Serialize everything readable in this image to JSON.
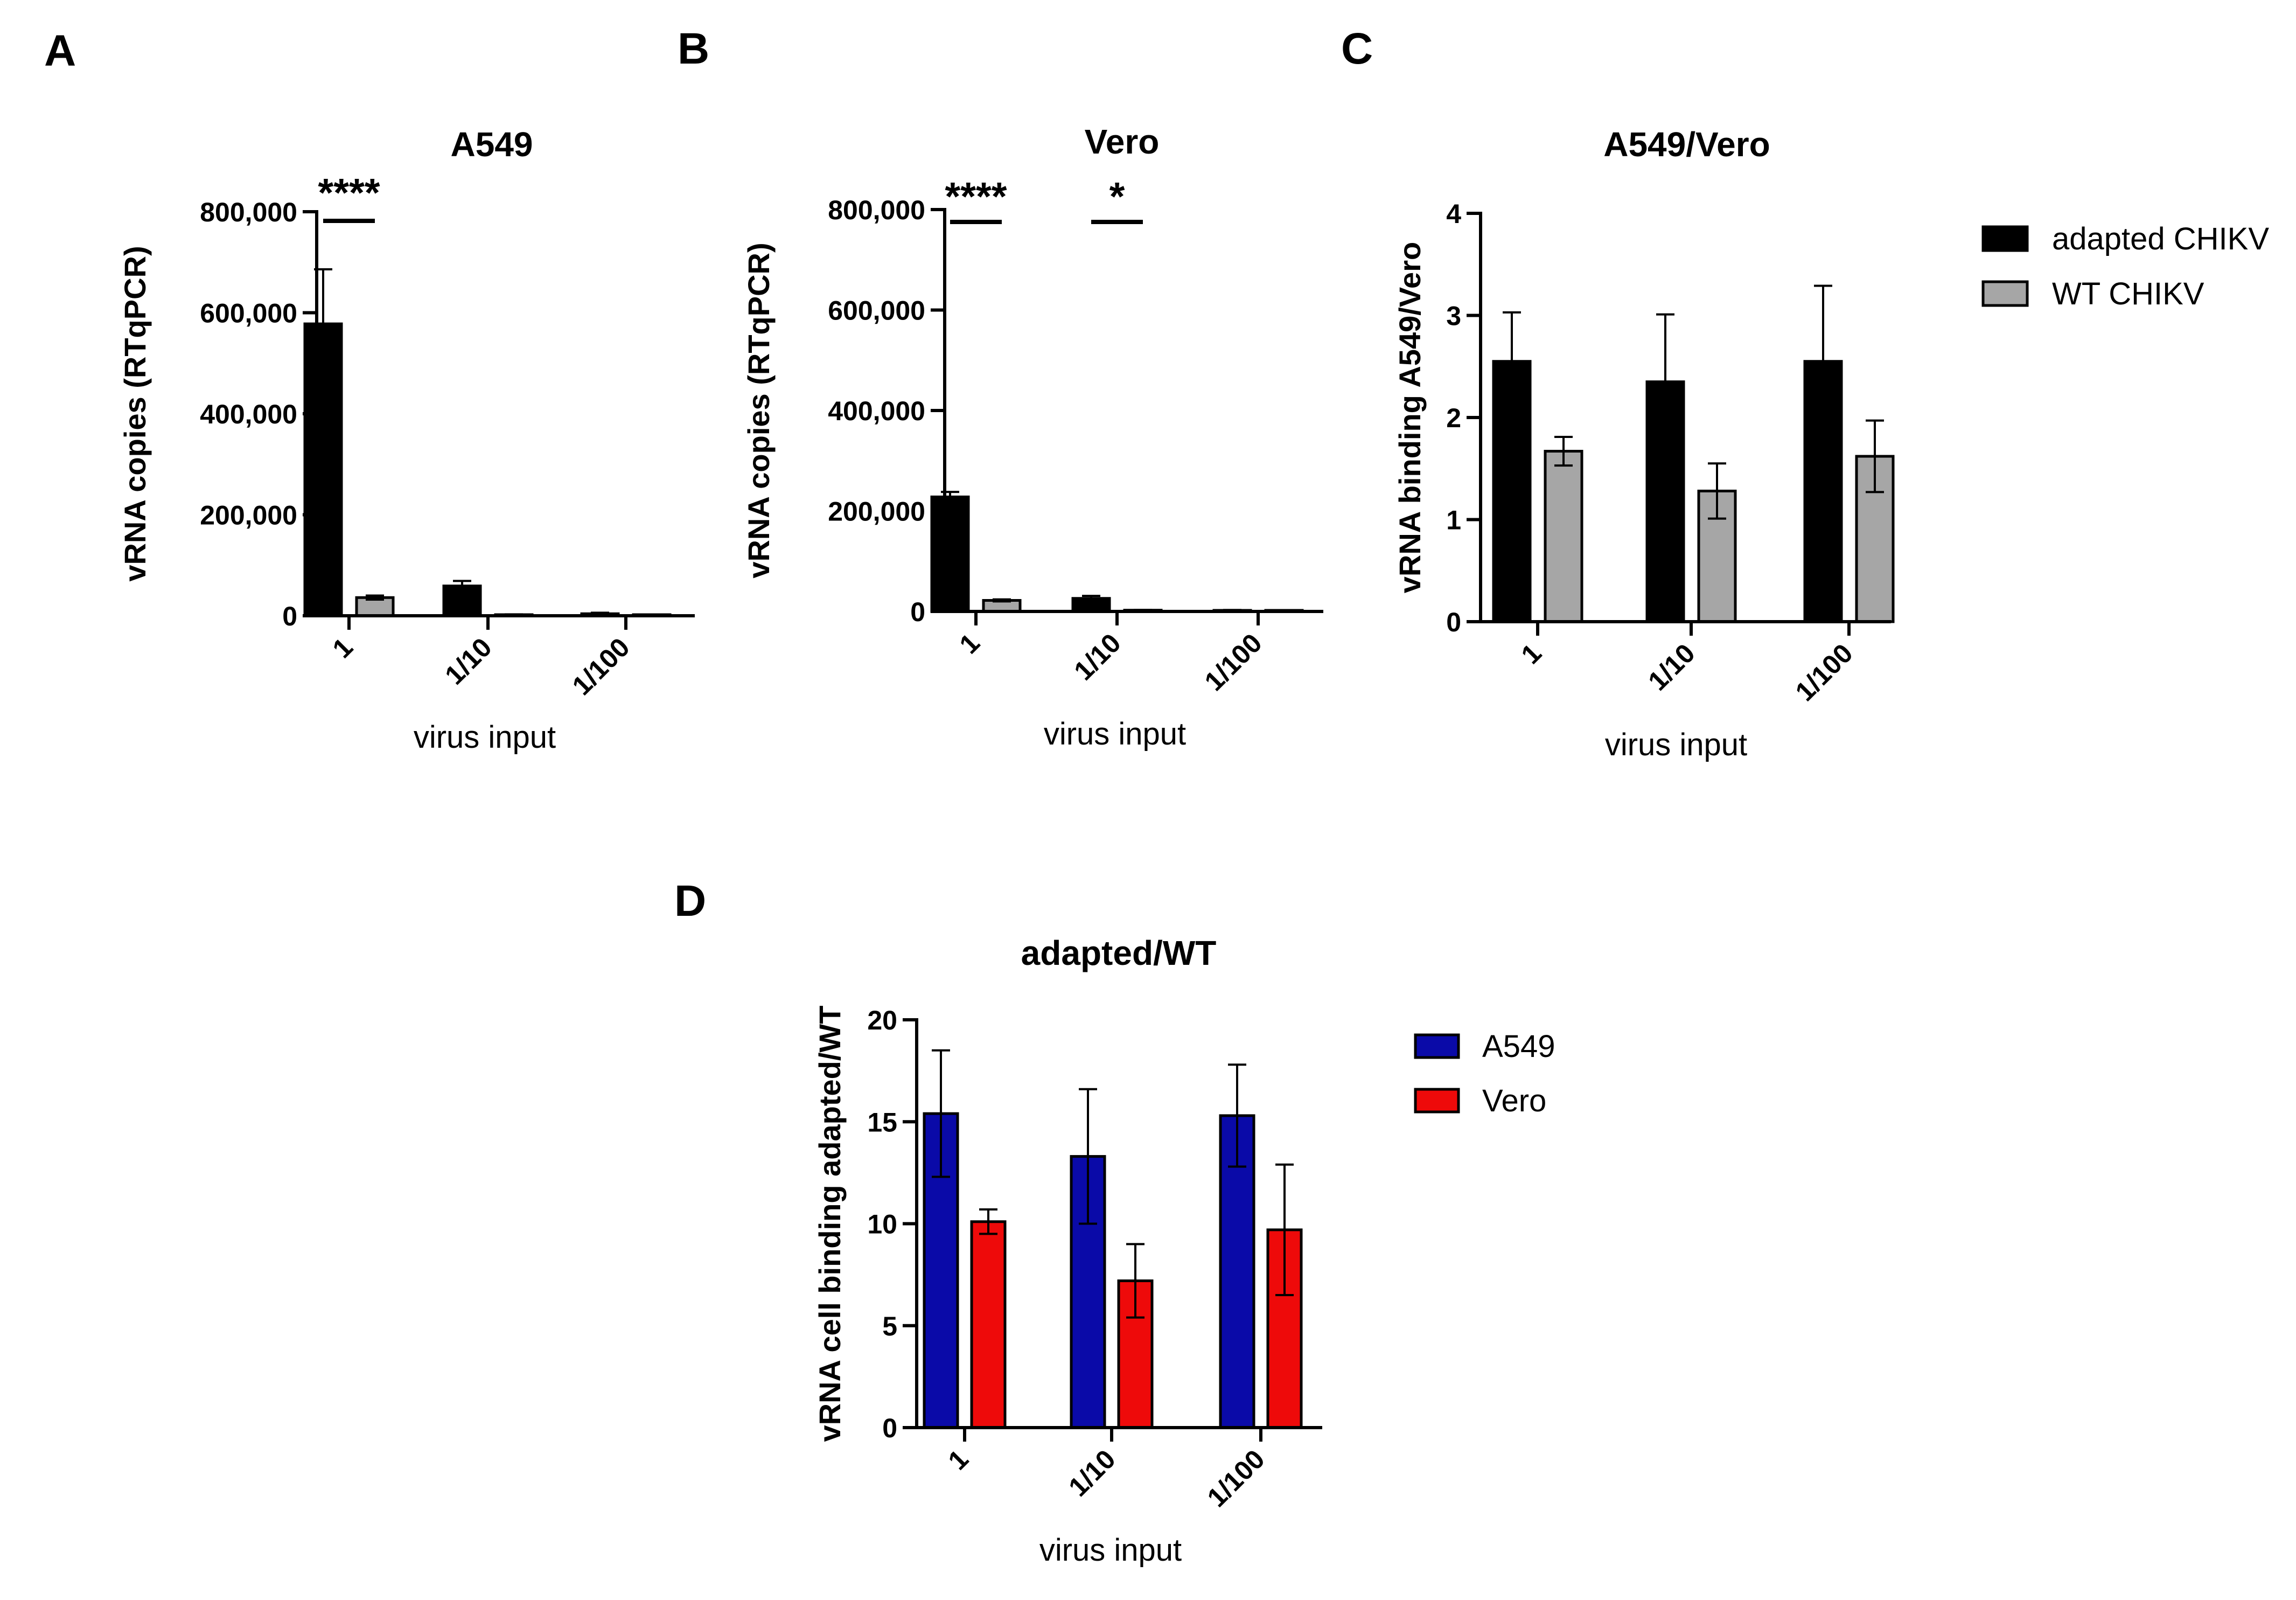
{
  "panels": [
    {
      "letter": "A"
    },
    {
      "letter": "B"
    },
    {
      "letter": "C"
    },
    {
      "letter": "D"
    }
  ],
  "chart_data": [
    {
      "panel": "A",
      "type": "bar",
      "title": "A549",
      "xlabel": "virus input",
      "ylabel": "vRNA copies (RTqPCR)",
      "categories": [
        "1",
        "1/10",
        "1/100"
      ],
      "ylim": [
        0,
        800000
      ],
      "yticks": [
        0,
        200000,
        400000,
        600000,
        800000
      ],
      "ytick_labels": [
        "0",
        "200,000",
        "400,000",
        "600,000",
        "800,000"
      ],
      "series": [
        {
          "name": "adapted CHIKV",
          "color": "#000000",
          "values": [
            578000,
            59000,
            4000
          ],
          "errors": [
            108000,
            10000,
            2000
          ]
        },
        {
          "name": "WT CHIKV",
          "color": "#a6a6a6",
          "values": [
            36000,
            2000,
            300
          ],
          "errors": [
            4000,
            800,
            200
          ]
        }
      ],
      "significance": [
        {
          "category": "1",
          "label": "****"
        }
      ]
    },
    {
      "panel": "B",
      "type": "bar",
      "title": "Vero",
      "xlabel": "virus input",
      "ylabel": "vRNA copies (RTqPCR)",
      "categories": [
        "1",
        "1/10",
        "1/100"
      ],
      "ylim": [
        0,
        800000
      ],
      "yticks": [
        0,
        200000,
        400000,
        600000,
        800000
      ],
      "ytick_labels": [
        "0",
        "200,000",
        "400,000",
        "600,000",
        "800,000"
      ],
      "series": [
        {
          "name": "adapted CHIKV",
          "color": "#000000",
          "values": [
            228000,
            26000,
            2000
          ],
          "errors": [
            10000,
            5000,
            1000
          ]
        },
        {
          "name": "WT CHIKV",
          "color": "#a6a6a6",
          "values": [
            22000,
            2500,
            300
          ],
          "errors": [
            2000,
            500,
            200
          ]
        }
      ],
      "significance": [
        {
          "category": "1",
          "label": "****"
        },
        {
          "category": "1/10",
          "label": "*"
        }
      ]
    },
    {
      "panel": "C",
      "type": "bar",
      "title": "A549/Vero",
      "xlabel": "virus input",
      "ylabel": "vRNA binding A549/Vero",
      "categories": [
        "1",
        "1/10",
        "1/100"
      ],
      "ylim": [
        0,
        4
      ],
      "yticks": [
        0,
        1,
        2,
        3,
        4
      ],
      "ytick_labels": [
        "0",
        "1",
        "2",
        "3",
        "4"
      ],
      "series": [
        {
          "name": "adapted CHIKV",
          "color": "#000000",
          "values": [
            2.55,
            2.35,
            2.55
          ],
          "errors": [
            0.48,
            0.66,
            0.74
          ]
        },
        {
          "name": "WT CHIKV",
          "color": "#a6a6a6",
          "values": [
            1.67,
            1.28,
            1.62
          ],
          "errors": [
            0.14,
            0.27,
            0.35
          ]
        }
      ],
      "legend": {
        "placement": "right",
        "items": [
          "adapted CHIKV",
          "WT CHIKV"
        ]
      }
    },
    {
      "panel": "D",
      "type": "bar",
      "title": "adapted/WT",
      "xlabel": "virus input",
      "ylabel": "vRNA cell binding adapted/WT",
      "categories": [
        "1",
        "1/10",
        "1/100"
      ],
      "ylim": [
        0,
        20
      ],
      "yticks": [
        0,
        5,
        10,
        15,
        20
      ],
      "ytick_labels": [
        "0",
        "5",
        "10",
        "15",
        "20"
      ],
      "series": [
        {
          "name": "A549",
          "color": "#0a0aa8",
          "values": [
            15.4,
            13.3,
            15.3
          ],
          "errors": [
            3.1,
            3.3,
            2.5
          ]
        },
        {
          "name": "Vero",
          "color": "#ee0a0a",
          "values": [
            10.1,
            7.2,
            9.7
          ],
          "errors": [
            0.6,
            1.8,
            3.2
          ]
        }
      ],
      "legend": {
        "placement": "right",
        "items": [
          "A549",
          "Vero"
        ]
      }
    }
  ]
}
